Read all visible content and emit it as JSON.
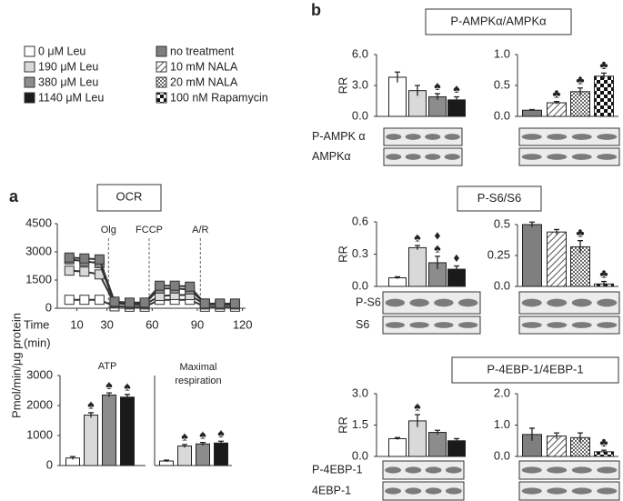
{
  "panel_labels": [
    "a",
    "b"
  ],
  "legend": [
    {
      "name": "0 μM Leu",
      "color": "#ffffff"
    },
    {
      "name": "190 μM Leu",
      "color": "#d9d9d9"
    },
    {
      "name": "380 μM Leu",
      "color": "#8c8c8c"
    },
    {
      "name": "1140 μM Leu",
      "color": "#1a1a1a"
    },
    {
      "name": "no treatment",
      "color": "#7f7f7f"
    },
    {
      "name": "10 mM NALA",
      "color": "hatch"
    },
    {
      "name": "20 mM NALA",
      "color": "dots"
    },
    {
      "name": "100 nM Rapamycin",
      "color": "checker"
    }
  ],
  "shared_ylabel": "Pmol/min/μg protein",
  "groups": [
    {
      "title": "P-AMPKα/AMPKα",
      "blots": [
        "P-AMPK α",
        "AMPKα"
      ]
    },
    {
      "title": "P-S6/S6",
      "blots": [
        "P-S6",
        "S6"
      ]
    },
    {
      "title": "P-4EBP-1/4EBP-1",
      "blots": [
        "P-4EBP-1",
        "4EBP-1"
      ]
    }
  ],
  "chart_data": [
    {
      "type": "line",
      "title": "OCR",
      "xlabel": [
        "Time",
        "(min)"
      ],
      "x": [
        5,
        15,
        25,
        35,
        45,
        55,
        65,
        75,
        85,
        95,
        105,
        115
      ],
      "xlim": [
        -3,
        122
      ],
      "xticks": [
        10,
        30,
        60,
        90,
        120
      ],
      "ylim": [
        0,
        4500
      ],
      "yticks": [
        0,
        1500,
        3000,
        4500
      ],
      "events": [
        {
          "x": 31,
          "label": "Olg"
        },
        {
          "x": 58,
          "label": "FCCP"
        },
        {
          "x": 92,
          "label": "A/R"
        }
      ],
      "series": [
        {
          "color": "#ffffff",
          "values": [
            450,
            450,
            450,
            100,
            80,
            80,
            450,
            450,
            450,
            80,
            80,
            80
          ]
        },
        {
          "color": "#d9d9d9",
          "values": [
            2000,
            1950,
            1800,
            250,
            200,
            200,
            650,
            700,
            700,
            200,
            200,
            200
          ]
        },
        {
          "color": "#8c8c8c",
          "values": [
            2600,
            2500,
            2400,
            300,
            250,
            250,
            1050,
            1050,
            1000,
            250,
            200,
            200
          ]
        },
        {
          "color": "#7f7f7f",
          "values": [
            2700,
            2650,
            2600,
            350,
            300,
            300,
            1200,
            1200,
            1150,
            250,
            250,
            250
          ]
        }
      ]
    },
    {
      "type": "bar",
      "title": [
        "ATP"
      ],
      "values": [
        250,
        1680,
        2350,
        2280
      ],
      "errors": [
        50,
        80,
        70,
        90
      ],
      "colors": [
        "#ffffff",
        "#d9d9d9",
        "#8c8c8c",
        "#1a1a1a"
      ],
      "markers": [
        [],
        [
          "♠"
        ],
        [
          "♠"
        ],
        [
          "♠"
        ]
      ],
      "ylim": [
        0,
        3000
      ],
      "yticks": [
        0,
        1000,
        2000,
        3000
      ]
    },
    {
      "type": "bar",
      "title": [
        "Maximal",
        "respiration"
      ],
      "values": [
        150,
        650,
        720,
        750
      ],
      "errors": [
        30,
        50,
        50,
        60
      ],
      "colors": [
        "#ffffff",
        "#d9d9d9",
        "#8c8c8c",
        "#1a1a1a"
      ],
      "markers": [
        [],
        [
          "♠"
        ],
        [
          "♠"
        ],
        [
          "♠"
        ]
      ],
      "ylim": [
        0,
        3000
      ]
    },
    {
      "type": "bar",
      "ylabel": "RR",
      "values": [
        3.8,
        2.5,
        1.9,
        1.6
      ],
      "errors": [
        0.5,
        0.5,
        0.3,
        0.3
      ],
      "colors": [
        "#ffffff",
        "#d9d9d9",
        "#8c8c8c",
        "#1a1a1a"
      ],
      "markers": [
        [],
        [],
        [
          "♠"
        ],
        [
          "♠"
        ]
      ],
      "ylim": [
        0,
        6
      ],
      "yticks": [
        {
          "value": 0,
          "label": "0.0"
        },
        {
          "value": 3,
          "label": "3.0"
        },
        {
          "value": 6,
          "label": "6.0"
        }
      ]
    },
    {
      "type": "bar",
      "values": [
        0.1,
        0.22,
        0.4,
        0.65
      ],
      "errors": [
        0.01,
        0.02,
        0.06,
        0.05
      ],
      "colors": [
        "#7f7f7f",
        "hatch",
        "dots",
        "checker"
      ],
      "markers": [
        [],
        [
          "♣"
        ],
        [
          "♣"
        ],
        [
          "♣"
        ]
      ],
      "ylim": [
        0,
        1
      ],
      "yticks": [
        {
          "value": 0,
          "label": "0.0"
        },
        0.5,
        {
          "value": 1,
          "label": "1.0"
        }
      ]
    },
    {
      "type": "bar",
      "ylabel": "RR",
      "values": [
        0.08,
        0.36,
        0.22,
        0.16
      ],
      "errors": [
        0.01,
        0.02,
        0.06,
        0.03
      ],
      "colors": [
        "#ffffff",
        "#d9d9d9",
        "#8c8c8c",
        "#1a1a1a"
      ],
      "markers": [
        [],
        [
          "♠"
        ],
        [
          "♠",
          "♦"
        ],
        [
          "♦"
        ]
      ],
      "ylim": [
        0,
        0.6
      ],
      "yticks": [
        {
          "value": 0,
          "label": "0.0"
        },
        0.3,
        0.6
      ]
    },
    {
      "type": "bar",
      "values": [
        0.5,
        0.44,
        0.32,
        0.02
      ],
      "errors": [
        0.02,
        0.02,
        0.05,
        0.02
      ],
      "colors": [
        "#7f7f7f",
        "hatch",
        "dots",
        "checker"
      ],
      "markers": [
        [],
        [],
        [
          "♣"
        ],
        [
          "♣"
        ]
      ],
      "ylim": [
        0,
        0.5
      ],
      "yticks": [
        {
          "value": 0,
          "label": "0.0"
        },
        0.25,
        0.5
      ]
    },
    {
      "type": "bar",
      "ylabel": "RR",
      "values": [
        0.85,
        1.7,
        1.15,
        0.75
      ],
      "errors": [
        0.05,
        0.3,
        0.1,
        0.1
      ],
      "colors": [
        "#ffffff",
        "#d9d9d9",
        "#8c8c8c",
        "#1a1a1a"
      ],
      "markers": [
        [],
        [
          "♠"
        ],
        [],
        []
      ],
      "ylim": [
        0,
        3
      ],
      "yticks": [
        {
          "value": 0,
          "label": "0.0"
        },
        1.5,
        {
          "value": 3,
          "label": "3.0"
        }
      ]
    },
    {
      "type": "bar",
      "values": [
        0.7,
        0.65,
        0.6,
        0.15
      ],
      "errors": [
        0.2,
        0.1,
        0.15,
        0.05
      ],
      "colors": [
        "#7f7f7f",
        "hatch",
        "dots",
        "checker"
      ],
      "markers": [
        [],
        [],
        [],
        [
          "♣"
        ]
      ],
      "ylim": [
        0,
        2
      ],
      "yticks": [
        {
          "value": 0,
          "label": "0.0"
        },
        {
          "value": 1,
          "label": "1.0"
        },
        {
          "value": 2,
          "label": "2.0"
        }
      ]
    }
  ]
}
